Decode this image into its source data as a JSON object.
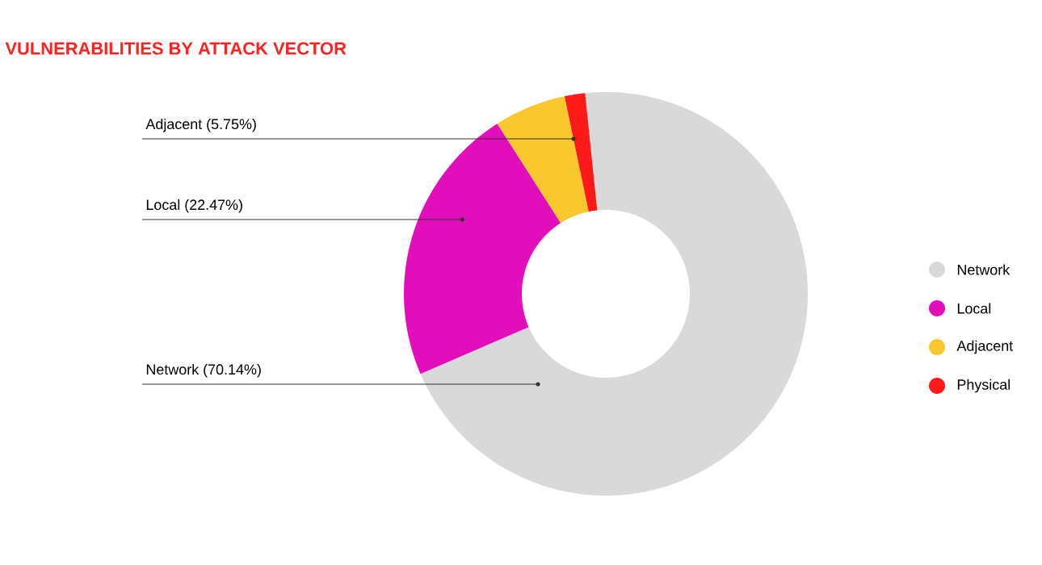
{
  "chart_data": {
    "type": "donut",
    "title": "VULNERABILITIES BY ATTACK VECTOR",
    "categories": [
      "Network",
      "Local",
      "Adjacent",
      "Physical"
    ],
    "values": [
      70.14,
      22.47,
      5.75,
      1.64
    ],
    "colors": [
      "#d9d9d9",
      "#e20dbb",
      "#f9c72e",
      "#ff1a1a"
    ],
    "value_labels": [
      "Network (70.14%)",
      "Local (22.47%)",
      "Adjacent (5.75%)",
      null
    ],
    "legend": "right"
  }
}
